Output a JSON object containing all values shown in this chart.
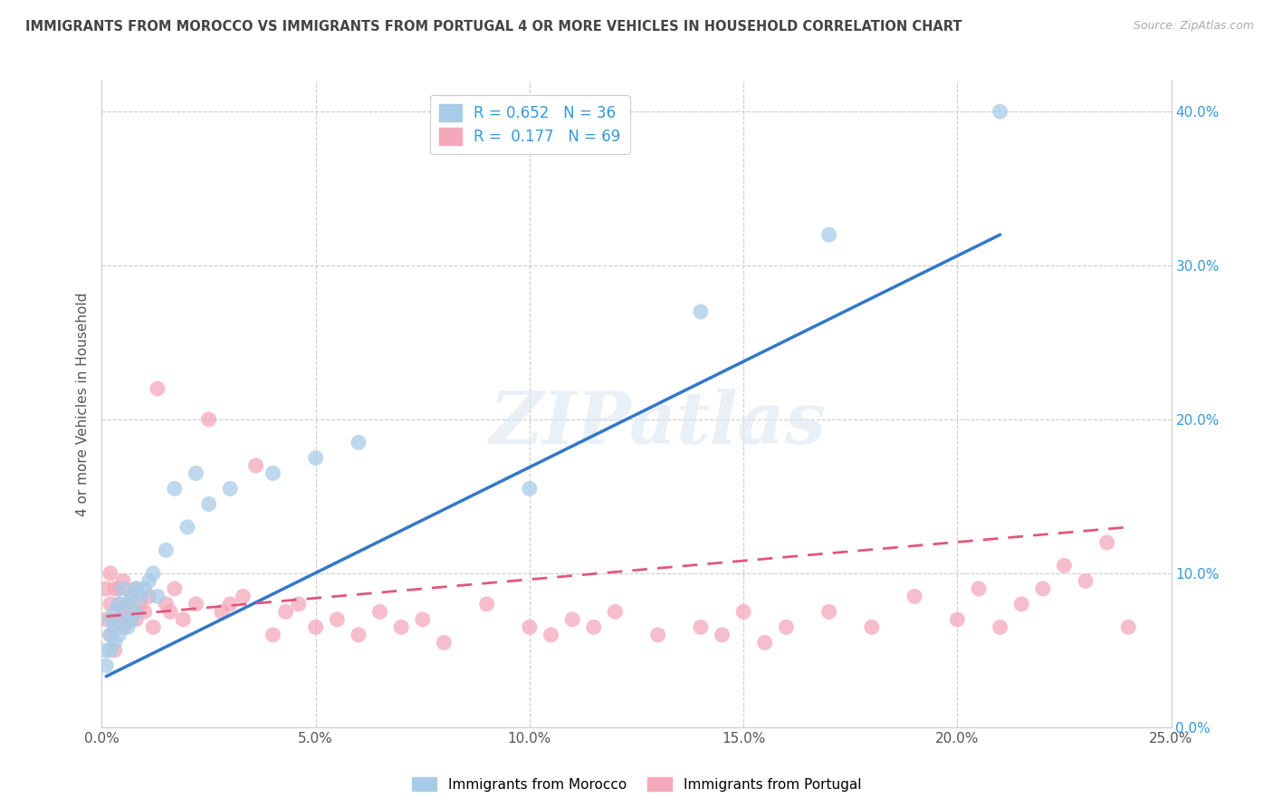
{
  "title": "IMMIGRANTS FROM MOROCCO VS IMMIGRANTS FROM PORTUGAL 4 OR MORE VEHICLES IN HOUSEHOLD CORRELATION CHART",
  "source": "Source: ZipAtlas.com",
  "ylabel": "4 or more Vehicles in Household",
  "xlim": [
    0.0,
    0.25
  ],
  "ylim": [
    0.0,
    0.42
  ],
  "xticks": [
    0.0,
    0.05,
    0.1,
    0.15,
    0.2,
    0.25
  ],
  "yticks": [
    0.0,
    0.1,
    0.2,
    0.3,
    0.4
  ],
  "xtick_labels": [
    "0.0%",
    "5.0%",
    "10.0%",
    "15.0%",
    "20.0%",
    "25.0%"
  ],
  "ytick_labels": [
    "0.0%",
    "10.0%",
    "20.0%",
    "30.0%",
    "40.0%"
  ],
  "morocco_color": "#a8cce8",
  "portugal_color": "#f4a8bb",
  "morocco_line_color": "#3378c8",
  "portugal_line_color": "#e05878",
  "morocco_R": 0.652,
  "morocco_N": 36,
  "portugal_R": 0.177,
  "portugal_N": 69,
  "legend_label_morocco": "Immigrants from Morocco",
  "legend_label_portugal": "Immigrants from Portugal",
  "watermark": "ZIPatlas",
  "background_color": "#ffffff",
  "grid_color": "#cccccc",
  "title_color": "#444444",
  "source_color": "#aaaaaa",
  "morocco_x": [
    0.001,
    0.001,
    0.002,
    0.002,
    0.002,
    0.003,
    0.003,
    0.003,
    0.004,
    0.004,
    0.005,
    0.005,
    0.006,
    0.006,
    0.007,
    0.007,
    0.008,
    0.008,
    0.009,
    0.01,
    0.011,
    0.012,
    0.013,
    0.015,
    0.017,
    0.02,
    0.022,
    0.025,
    0.03,
    0.04,
    0.05,
    0.06,
    0.1,
    0.14,
    0.17,
    0.21
  ],
  "morocco_y": [
    0.05,
    0.04,
    0.06,
    0.07,
    0.05,
    0.065,
    0.055,
    0.075,
    0.06,
    0.08,
    0.07,
    0.09,
    0.065,
    0.08,
    0.085,
    0.07,
    0.09,
    0.075,
    0.085,
    0.09,
    0.095,
    0.1,
    0.085,
    0.115,
    0.155,
    0.13,
    0.165,
    0.145,
    0.155,
    0.165,
    0.175,
    0.185,
    0.155,
    0.27,
    0.32,
    0.4
  ],
  "portugal_x": [
    0.001,
    0.001,
    0.002,
    0.002,
    0.002,
    0.003,
    0.003,
    0.003,
    0.004,
    0.004,
    0.004,
    0.005,
    0.005,
    0.005,
    0.006,
    0.006,
    0.007,
    0.007,
    0.008,
    0.008,
    0.009,
    0.01,
    0.011,
    0.012,
    0.013,
    0.015,
    0.016,
    0.017,
    0.019,
    0.022,
    0.025,
    0.028,
    0.03,
    0.033,
    0.036,
    0.04,
    0.043,
    0.046,
    0.05,
    0.055,
    0.06,
    0.065,
    0.07,
    0.075,
    0.08,
    0.09,
    0.1,
    0.105,
    0.11,
    0.115,
    0.12,
    0.13,
    0.14,
    0.145,
    0.15,
    0.155,
    0.16,
    0.17,
    0.18,
    0.19,
    0.2,
    0.205,
    0.21,
    0.215,
    0.22,
    0.225,
    0.23,
    0.235,
    0.24
  ],
  "portugal_y": [
    0.09,
    0.07,
    0.08,
    0.06,
    0.1,
    0.07,
    0.09,
    0.05,
    0.08,
    0.07,
    0.09,
    0.065,
    0.075,
    0.095,
    0.07,
    0.08,
    0.075,
    0.085,
    0.07,
    0.09,
    0.08,
    0.075,
    0.085,
    0.065,
    0.22,
    0.08,
    0.075,
    0.09,
    0.07,
    0.08,
    0.2,
    0.075,
    0.08,
    0.085,
    0.17,
    0.06,
    0.075,
    0.08,
    0.065,
    0.07,
    0.06,
    0.075,
    0.065,
    0.07,
    0.055,
    0.08,
    0.065,
    0.06,
    0.07,
    0.065,
    0.075,
    0.06,
    0.065,
    0.06,
    0.075,
    0.055,
    0.065,
    0.075,
    0.065,
    0.085,
    0.07,
    0.09,
    0.065,
    0.08,
    0.09,
    0.105,
    0.095,
    0.12,
    0.065
  ],
  "morocco_line_x": [
    0.001,
    0.21
  ],
  "morocco_line_y": [
    0.033,
    0.32
  ],
  "portugal_line_x": [
    0.001,
    0.24
  ],
  "portugal_line_y": [
    0.072,
    0.13
  ]
}
